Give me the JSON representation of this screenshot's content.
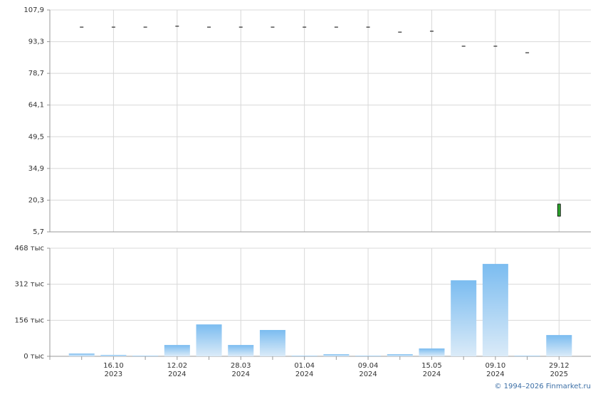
{
  "chart_data": [
    {
      "type": "candlestick",
      "categories": [
        null,
        "16.10",
        null,
        "12.02",
        null,
        "28.03",
        null,
        "01.04",
        null,
        "09.04",
        null,
        "15.05",
        null,
        "09.10",
        null,
        "29.12"
      ],
      "category_years": [
        null,
        "2023",
        null,
        "2024",
        null,
        "2024",
        null,
        "2024",
        null,
        "2024",
        null,
        "2024",
        null,
        "2024",
        null,
        "2025"
      ],
      "open": [
        100.0,
        100.0,
        100.0,
        100.4,
        100.0,
        100.0,
        100.0,
        100.0,
        100.0,
        100.0,
        97.7,
        98.1,
        91.2,
        91.2,
        88.2,
        12.9
      ],
      "close": [
        100.0,
        100.0,
        100.0,
        100.4,
        100.0,
        100.0,
        100.0,
        100.0,
        100.0,
        100.0,
        97.7,
        98.1,
        91.2,
        91.2,
        88.2,
        18.5
      ],
      "up_color": "#2ea52e",
      "flat_color": "#000000",
      "ylim": [
        5.7,
        107.9
      ],
      "yticks": [
        {
          "value": 5.7,
          "label": "5,7"
        },
        {
          "value": 20.3,
          "label": "20,3"
        },
        {
          "value": 34.9,
          "label": "34,9"
        },
        {
          "value": 49.5,
          "label": "49,5"
        },
        {
          "value": 64.1,
          "label": "64,1"
        },
        {
          "value": 78.7,
          "label": "78,7"
        },
        {
          "value": 93.3,
          "label": "93,3"
        },
        {
          "value": 107.9,
          "label": "107,9"
        }
      ],
      "grid": true
    },
    {
      "type": "bar",
      "values": [
        12,
        6,
        3,
        49,
        138,
        49,
        114,
        3,
        9,
        3,
        9,
        34,
        329,
        400,
        3,
        92
      ],
      "color": "#7bbcf0",
      "ylim": [
        0,
        468
      ],
      "yticks": [
        {
          "value": 0,
          "label": "0 тыс"
        },
        {
          "value": 156,
          "label": "156 тыс"
        },
        {
          "value": 312,
          "label": "312 тыс"
        },
        {
          "value": 468,
          "label": "468 тыс"
        }
      ],
      "grid": true
    }
  ],
  "footer": "© 1994–2026 Finmarket.ru"
}
